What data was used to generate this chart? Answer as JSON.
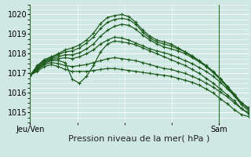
{
  "background_color": "#cfe8e4",
  "grid_color": "#ffffff",
  "line_color": "#1e5c1e",
  "marker": "+",
  "marker_size": 3,
  "linewidth": 0.9,
  "markeredgewidth": 0.8,
  "ylim": [
    1014.5,
    1020.5
  ],
  "yticks": [
    1015,
    1016,
    1017,
    1018,
    1019,
    1020
  ],
  "xlabel": "Pression niveau de la mer( hPa )",
  "xlabel_fontsize": 8,
  "tick_fontsize": 7,
  "xtick_labels": [
    "Jeu/Ven",
    "Sam"
  ],
  "xtick_positions": [
    0.0,
    0.865
  ],
  "vline_color": "#2d6e2d",
  "series": [
    [
      1016.9,
      1017.1,
      1017.35,
      1017.45,
      1017.35,
      1017.2,
      1017.1,
      1017.1,
      1017.1,
      1017.15,
      1017.2,
      1017.25,
      1017.25,
      1017.2,
      1017.15,
      1017.1,
      1017.05,
      1017.0,
      1016.95,
      1016.9,
      1016.85,
      1016.75,
      1016.65,
      1016.55,
      1016.4,
      1016.2,
      1016.0,
      1015.7,
      1015.45,
      1015.15,
      1014.9,
      1014.8
    ],
    [
      1016.9,
      1017.15,
      1017.45,
      1017.55,
      1017.5,
      1017.4,
      1017.35,
      1017.4,
      1017.45,
      1017.55,
      1017.65,
      1017.75,
      1017.8,
      1017.75,
      1017.7,
      1017.65,
      1017.55,
      1017.45,
      1017.35,
      1017.25,
      1017.2,
      1017.1,
      1017.0,
      1016.85,
      1016.7,
      1016.5,
      1016.3,
      1016.05,
      1015.8,
      1015.5,
      1015.2,
      1015.0
    ],
    [
      1016.9,
      1017.2,
      1017.5,
      1017.65,
      1017.65,
      1017.55,
      1016.7,
      1016.5,
      1016.85,
      1017.4,
      1018.1,
      1018.5,
      1018.65,
      1018.6,
      1018.55,
      1018.45,
      1018.3,
      1018.15,
      1018.0,
      1017.85,
      1017.7,
      1017.55,
      1017.4,
      1017.2,
      1017.0,
      1016.75,
      1016.5,
      1016.2,
      1015.9,
      1015.6,
      1015.2,
      1014.95
    ],
    [
      1016.9,
      1017.25,
      1017.55,
      1017.7,
      1017.75,
      1017.8,
      1017.75,
      1017.85,
      1018.0,
      1018.2,
      1018.5,
      1018.7,
      1018.85,
      1018.8,
      1018.7,
      1018.55,
      1018.4,
      1018.25,
      1018.15,
      1018.05,
      1017.95,
      1017.8,
      1017.65,
      1017.5,
      1017.3,
      1017.1,
      1016.85,
      1016.55,
      1016.2,
      1015.85,
      1015.5,
      1015.25
    ],
    [
      1016.9,
      1017.3,
      1017.6,
      1017.75,
      1017.85,
      1017.95,
      1017.95,
      1018.05,
      1018.25,
      1018.5,
      1018.9,
      1019.2,
      1019.4,
      1019.5,
      1019.45,
      1019.25,
      1018.95,
      1018.7,
      1018.5,
      1018.35,
      1018.25,
      1018.15,
      1018.0,
      1017.8,
      1017.6,
      1017.35,
      1017.05,
      1016.7,
      1016.3,
      1015.9,
      1015.5,
      1015.2
    ],
    [
      1016.9,
      1017.35,
      1017.65,
      1017.8,
      1017.95,
      1018.1,
      1018.15,
      1018.3,
      1018.55,
      1018.85,
      1019.3,
      1019.6,
      1019.75,
      1019.8,
      1019.75,
      1019.5,
      1019.1,
      1018.8,
      1018.6,
      1018.5,
      1018.4,
      1018.25,
      1018.1,
      1017.9,
      1017.65,
      1017.4,
      1017.1,
      1016.75,
      1016.35,
      1015.95,
      1015.5,
      1015.2
    ],
    [
      1016.9,
      1017.4,
      1017.7,
      1017.85,
      1018.0,
      1018.2,
      1018.3,
      1018.45,
      1018.7,
      1019.05,
      1019.55,
      1019.85,
      1019.95,
      1020.0,
      1019.9,
      1019.6,
      1019.2,
      1018.9,
      1018.7,
      1018.6,
      1018.5,
      1018.3,
      1018.1,
      1017.85,
      1017.6,
      1017.35,
      1017.05,
      1016.7,
      1016.3,
      1015.85,
      1015.4,
      1015.1
    ]
  ]
}
